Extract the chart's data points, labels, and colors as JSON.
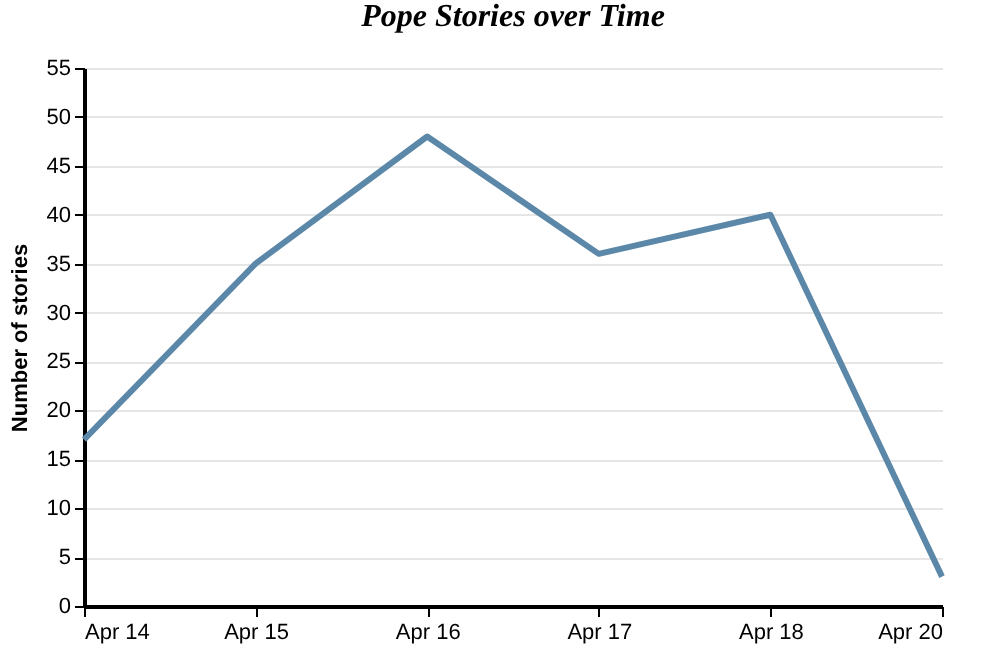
{
  "chart_data": {
    "type": "line",
    "title": "Pope Stories over Time",
    "ylabel": "Number of stories",
    "categories": [
      "Apr 14",
      "Apr 15",
      "Apr 16",
      "Apr 17",
      "Apr 18",
      "Apr 20"
    ],
    "series": [
      {
        "color": "#5b87a8",
        "values": [
          17,
          35,
          48,
          36,
          40,
          3
        ]
      }
    ],
    "ylim": [
      0,
      55
    ],
    "yticks": [
      0,
      5,
      10,
      15,
      20,
      25,
      30,
      35,
      40,
      45,
      50,
      55
    ],
    "grid": "y",
    "marker": "none",
    "line_style": "solid"
  }
}
